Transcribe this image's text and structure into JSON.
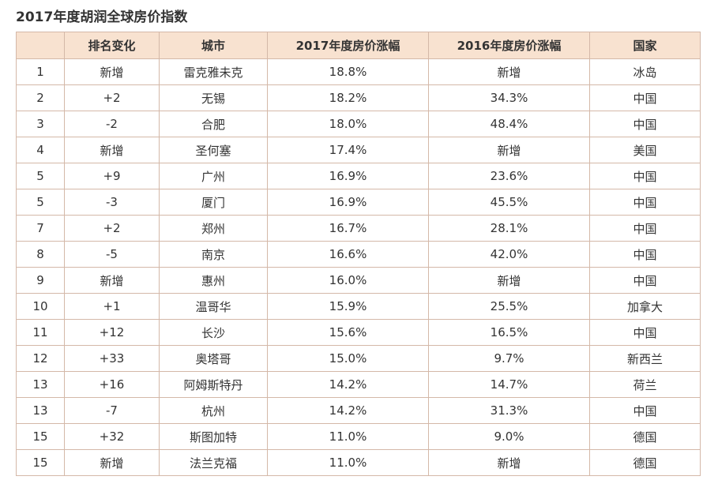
{
  "title": "2017年度胡润全球房价指数",
  "table": {
    "headers": [
      "",
      "排名变化",
      "城市",
      "2017年度房价涨幅",
      "2016年度房价涨幅",
      "国家"
    ],
    "rows": [
      [
        "1",
        "新增",
        "雷克雅未克",
        "18.8%",
        "新增",
        "冰岛"
      ],
      [
        "2",
        "+2",
        "无锡",
        "18.2%",
        "34.3%",
        "中国"
      ],
      [
        "3",
        "-2",
        "合肥",
        "18.0%",
        "48.4%",
        "中国"
      ],
      [
        "4",
        "新增",
        "圣何塞",
        "17.4%",
        "新增",
        "美国"
      ],
      [
        "5",
        "+9",
        "广州",
        "16.9%",
        "23.6%",
        "中国"
      ],
      [
        "5",
        "-3",
        "厦门",
        "16.9%",
        "45.5%",
        "中国"
      ],
      [
        "7",
        "+2",
        "郑州",
        "16.7%",
        "28.1%",
        "中国"
      ],
      [
        "8",
        "-5",
        "南京",
        "16.6%",
        "42.0%",
        "中国"
      ],
      [
        "9",
        "新增",
        "惠州",
        "16.0%",
        "新增",
        "中国"
      ],
      [
        "10",
        "+1",
        "温哥华",
        "15.9%",
        "25.5%",
        "加拿大"
      ],
      [
        "11",
        "+12",
        "长沙",
        "15.6%",
        "16.5%",
        "中国"
      ],
      [
        "12",
        "+33",
        "奥塔哥",
        "15.0%",
        "9.7%",
        "新西兰"
      ],
      [
        "13",
        "+16",
        "阿姆斯特丹",
        "14.2%",
        "14.7%",
        "荷兰"
      ],
      [
        "13",
        "-7",
        "杭州",
        "14.2%",
        "31.3%",
        "中国"
      ],
      [
        "15",
        "+32",
        "斯图加特",
        "11.0%",
        "9.0%",
        "德国"
      ],
      [
        "15",
        "新增",
        "法兰克福",
        "11.0%",
        "新增",
        "德国"
      ]
    ]
  },
  "colors": {
    "header_bg": "#f8e2d0",
    "border": "#d4b8a8",
    "text": "#333333"
  }
}
